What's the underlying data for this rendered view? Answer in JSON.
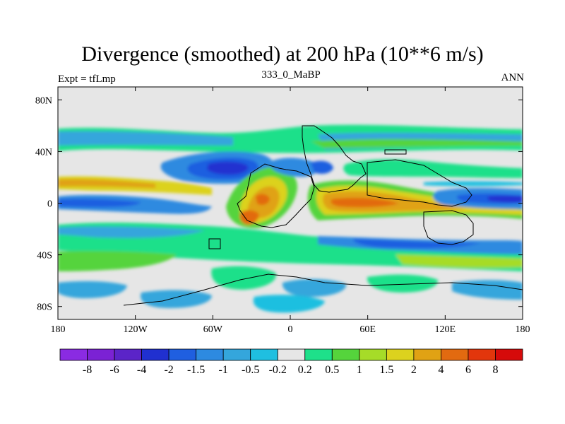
{
  "title": "Divergence (smoothed) at 200 hPa (10**6 m/s)",
  "subtitle_left": "Expt = tfLmp",
  "subtitle_center": "333_0_MaBP",
  "subtitle_right": "ANN",
  "colors": {
    "background": "#e6e6e6",
    "coast": "#000000"
  },
  "chart_data": {
    "type": "heatmap",
    "title": "Divergence (smoothed) at 200 hPa (10**6 m/s)",
    "variable": "Divergence (smoothed)",
    "level": "200 hPa",
    "units": "10**6 m/s",
    "xlim": [
      -180,
      180
    ],
    "ylim": [
      -90,
      90
    ],
    "x_ticks": [
      {
        "value": -180,
        "label": "180"
      },
      {
        "value": -120,
        "label": "120W"
      },
      {
        "value": -60,
        "label": "60W"
      },
      {
        "value": 0,
        "label": "0"
      },
      {
        "value": 60,
        "label": "60E"
      },
      {
        "value": 120,
        "label": "120E"
      },
      {
        "value": 180,
        "label": "180"
      }
    ],
    "y_ticks": [
      {
        "value": 80,
        "label": "80N"
      },
      {
        "value": 40,
        "label": "40N"
      },
      {
        "value": 0,
        "label": "0"
      },
      {
        "value": -40,
        "label": "40S"
      },
      {
        "value": -80,
        "label": "80S"
      }
    ],
    "colorbar": {
      "labels": [
        "-8",
        "-6",
        "-4",
        "-2",
        "-1.5",
        "-1",
        "-0.5",
        "-0.2",
        "0.2",
        "0.5",
        "1",
        "1.5",
        "2",
        "4",
        "6",
        "8"
      ],
      "colors": [
        "#8a2be2",
        "#7b22d4",
        "#5b24c8",
        "#2030d0",
        "#1f5fe0",
        "#2d8ae0",
        "#34a6dc",
        "#1fbfe0",
        "#e6e6e6",
        "#1ee08a",
        "#55d43c",
        "#a6dc28",
        "#dcd21e",
        "#e0a214",
        "#e26a10",
        "#e2360c",
        "#d60a0a"
      ]
    }
  }
}
